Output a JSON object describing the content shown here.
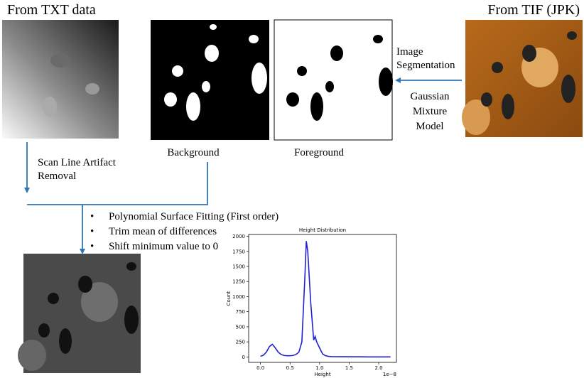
{
  "header": {
    "left_source": "From TXT data",
    "right_source": "From TIF (JPK)"
  },
  "steps": {
    "segmentation": [
      "Image",
      "Segmentation"
    ],
    "model": [
      "Gaussian",
      "Mixture",
      "Model"
    ],
    "scan_line": [
      "Scan Line Artifact",
      "Removal"
    ],
    "bullets": [
      "Polynomial Surface Fitting (First order)",
      "Trim mean of differences",
      "Shift minimum value to 0"
    ]
  },
  "images": {
    "background": "Background",
    "foreground": "Foreground"
  },
  "chart_data": {
    "type": "line",
    "title": "Height Distribution",
    "x_label": "Height",
    "y_label": "Count",
    "x_offset_label": "1e−8",
    "x": [
      0.0,
      0.05,
      0.1,
      0.15,
      0.2,
      0.25,
      0.3,
      0.35,
      0.4,
      0.45,
      0.5,
      0.55,
      0.6,
      0.65,
      0.7,
      0.75,
      0.775,
      0.8,
      0.85,
      0.9,
      0.925,
      0.95,
      1.0,
      1.05,
      1.1,
      1.15,
      1.2,
      1.4,
      1.6,
      1.8,
      2.0,
      2.2
    ],
    "series": [
      {
        "name": "Count",
        "color": "#1f1fd6",
        "values": [
          10,
          30,
          80,
          170,
          210,
          150,
          80,
          40,
          25,
          20,
          20,
          25,
          40,
          80,
          250,
          1300,
          1920,
          1750,
          900,
          280,
          340,
          250,
          150,
          50,
          20,
          10,
          5,
          3,
          2,
          1,
          1,
          0
        ]
      }
    ],
    "xlim": [
      -0.2,
      2.3
    ],
    "ylim": [
      -90,
      2030
    ],
    "xticks": [
      {
        "value": 0,
        "label": "0.0"
      },
      {
        "value": 0.5,
        "label": "0.5"
      },
      {
        "value": 1,
        "label": "1.0"
      },
      {
        "value": 1.5,
        "label": "1.5"
      },
      {
        "value": 2,
        "label": "2.0"
      }
    ],
    "yticks": [
      0,
      250,
      500,
      750,
      1000,
      1250,
      1500,
      1750,
      2000
    ]
  }
}
